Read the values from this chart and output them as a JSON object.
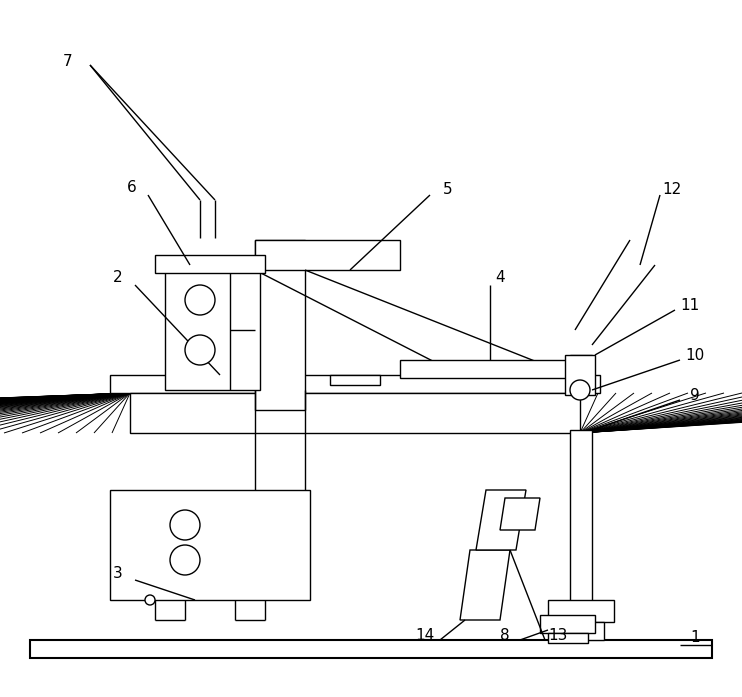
{
  "bg_color": "#ffffff",
  "line_color": "#000000",
  "lw": 1.0,
  "lw_thick": 1.5,
  "lw_hatch": 0.7,
  "fig_width": 7.42,
  "fig_height": 6.97,
  "dpi": 100
}
